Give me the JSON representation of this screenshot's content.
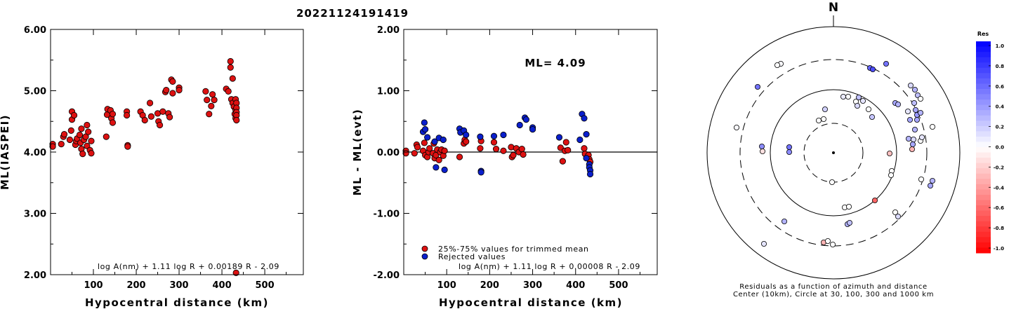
{
  "title": "20221124191419",
  "colors": {
    "red": "#dd1111",
    "blue": "#0a1fcc",
    "axis": "#000000"
  },
  "chart_data": [
    {
      "type": "scatter",
      "xlabel": "Hypocentral distance (km)",
      "ylabel": "ML(IASPEI)",
      "xlim": [
        0,
        590
      ],
      "ylim": [
        2.0,
        6.0
      ],
      "xticks": [
        "100",
        "200",
        "300",
        "400",
        "500"
      ],
      "yticks": [
        "2.00",
        "3.00",
        "4.00",
        "5.00",
        "6.00"
      ],
      "formula": "log A(nm) + 1.11 log R + 0.00189 R - 2.09",
      "series": [
        {
          "color": "red",
          "points": [
            [
              5,
              4.13
            ],
            [
              5,
              4.09
            ],
            [
              25,
              4.13
            ],
            [
              30,
              4.25
            ],
            [
              32,
              4.29
            ],
            [
              45,
              4.2
            ],
            [
              48,
              4.35
            ],
            [
              50,
              4.53
            ],
            [
              50,
              4.66
            ],
            [
              55,
              4.6
            ],
            [
              58,
              4.12
            ],
            [
              60,
              4.18
            ],
            [
              62,
              4.22
            ],
            [
              68,
              4.28
            ],
            [
              70,
              4.15
            ],
            [
              72,
              4.38
            ],
            [
              72,
              4.05
            ],
            [
              75,
              3.97
            ],
            [
              78,
              4.2
            ],
            [
              82,
              4.25
            ],
            [
              85,
              4.44
            ],
            [
              85,
              4.1
            ],
            [
              88,
              4.33
            ],
            [
              92,
              4.03
            ],
            [
              95,
              3.98
            ],
            [
              95,
              4.18
            ],
            [
              130,
              4.25
            ],
            [
              132,
              4.61
            ],
            [
              133,
              4.7
            ],
            [
              140,
              4.68
            ],
            [
              142,
              4.55
            ],
            [
              145,
              4.62
            ],
            [
              145,
              4.48
            ],
            [
              178,
              4.66
            ],
            [
              178,
              4.6
            ],
            [
              180,
              4.11
            ],
            [
              180,
              4.09
            ],
            [
              210,
              4.66
            ],
            [
              215,
              4.6
            ],
            [
              220,
              4.52
            ],
            [
              232,
              4.8
            ],
            [
              235,
              4.58
            ],
            [
              250,
              4.63
            ],
            [
              252,
              4.5
            ],
            [
              255,
              4.44
            ],
            [
              262,
              4.66
            ],
            [
              268,
              4.98
            ],
            [
              270,
              5.01
            ],
            [
              275,
              4.63
            ],
            [
              278,
              4.57
            ],
            [
              282,
              5.18
            ],
            [
              285,
              5.15
            ],
            [
              285,
              4.96
            ],
            [
              300,
              5.05
            ],
            [
              300,
              5.01
            ],
            [
              362,
              4.99
            ],
            [
              365,
              4.85
            ],
            [
              370,
              4.62
            ],
            [
              375,
              4.75
            ],
            [
              378,
              4.94
            ],
            [
              382,
              4.85
            ],
            [
              410,
              5.03
            ],
            [
              415,
              4.99
            ],
            [
              420,
              5.48
            ],
            [
              420,
              5.38
            ],
            [
              422,
              4.86
            ],
            [
              425,
              5.2
            ],
            [
              425,
              4.8
            ],
            [
              428,
              4.74
            ],
            [
              430,
              4.62
            ],
            [
              432,
              4.55
            ],
            [
              432,
              4.69
            ],
            [
              432,
              4.86
            ],
            [
              434,
              4.8
            ],
            [
              434,
              4.72
            ],
            [
              434,
              4.65
            ],
            [
              434,
              4.6
            ],
            [
              434,
              4.52
            ],
            [
              433,
              2.03
            ]
          ]
        }
      ]
    },
    {
      "type": "scatter",
      "xlabel": "Hypocentral distance (km)",
      "ylabel": "ML - ML(evt)",
      "xlim": [
        0,
        590
      ],
      "ylim": [
        -2.0,
        2.0
      ],
      "xticks": [
        "100",
        "200",
        "300",
        "400",
        "500"
      ],
      "yticks": [
        "-2.00",
        "-1.00",
        "0.00",
        "1.00",
        "2.00"
      ],
      "zero_line": 0,
      "annotation": "ML= 4.09",
      "formula": "log A(nm) + 1.11 log R + 0.00008 R - 2.09",
      "series": [
        {
          "name": "25%-75% values for trimmed mean",
          "color": "red",
          "points": [
            [
              5,
              0.02
            ],
            [
              5,
              -0.02
            ],
            [
              25,
              -0.02
            ],
            [
              30,
              0.12
            ],
            [
              32,
              0.08
            ],
            [
              45,
              0.02
            ],
            [
              48,
              0.15
            ],
            [
              50,
              -0.05
            ],
            [
              55,
              -0.08
            ],
            [
              58,
              0.0
            ],
            [
              60,
              0.06
            ],
            [
              68,
              -0.02
            ],
            [
              70,
              0.14
            ],
            [
              72,
              -0.1
            ],
            [
              75,
              -0.05
            ],
            [
              78,
              0.04
            ],
            [
              82,
              -0.13
            ],
            [
              85,
              0.0
            ],
            [
              88,
              0.04
            ],
            [
              92,
              -0.06
            ],
            [
              95,
              0.02
            ],
            [
              130,
              -0.08
            ],
            [
              140,
              0.14
            ],
            [
              142,
              0.2
            ],
            [
              145,
              0.17
            ],
            [
              178,
              0.06
            ],
            [
              180,
              0.18
            ],
            [
              210,
              0.16
            ],
            [
              215,
              0.05
            ],
            [
              232,
              0.02
            ],
            [
              250,
              0.08
            ],
            [
              252,
              -0.08
            ],
            [
              255,
              -0.05
            ],
            [
              262,
              0.06
            ],
            [
              268,
              0.0
            ],
            [
              275,
              0.05
            ],
            [
              278,
              -0.04
            ],
            [
              365,
              0.07
            ],
            [
              370,
              -0.15
            ],
            [
              375,
              0.02
            ],
            [
              378,
              0.16
            ],
            [
              382,
              0.03
            ],
            [
              420,
              0.06
            ],
            [
              422,
              -0.03
            ],
            [
              428,
              -0.08
            ],
            [
              430,
              -0.05
            ],
            [
              432,
              -0.12
            ],
            [
              434,
              -0.16
            ]
          ]
        },
        {
          "name": "Rejected values",
          "color": "blue",
          "points": [
            [
              45,
              0.33
            ],
            [
              48,
              0.48
            ],
            [
              50,
              0.37
            ],
            [
              55,
              0.24
            ],
            [
              72,
              0.17
            ],
            [
              75,
              -0.25
            ],
            [
              82,
              0.23
            ],
            [
              92,
              0.2
            ],
            [
              95,
              -0.29
            ],
            [
              130,
              0.38
            ],
            [
              132,
              0.32
            ],
            [
              140,
              0.35
            ],
            [
              145,
              0.28
            ],
            [
              178,
              0.25
            ],
            [
              180,
              -0.31
            ],
            [
              180,
              -0.33
            ],
            [
              210,
              0.26
            ],
            [
              232,
              0.28
            ],
            [
              270,
              0.44
            ],
            [
              282,
              0.56
            ],
            [
              285,
              0.53
            ],
            [
              300,
              0.4
            ],
            [
              300,
              0.37
            ],
            [
              362,
              0.24
            ],
            [
              410,
              0.2
            ],
            [
              415,
              0.62
            ],
            [
              420,
              0.55
            ],
            [
              425,
              0.29
            ],
            [
              425,
              -0.1
            ],
            [
              432,
              -0.2
            ],
            [
              432,
              -0.25
            ],
            [
              434,
              -0.3
            ],
            [
              434,
              -0.36
            ]
          ]
        }
      ]
    },
    {
      "type": "scatter",
      "title": "N",
      "caption_line1": "Residuals as a function of azimuth and distance",
      "caption_line2": "Center (10km), Circle at 30, 100, 300 and 1000 km",
      "rings_km": [
        30,
        100,
        300,
        1000
      ],
      "colorbar_label": "Res",
      "colorbar_ticks": [
        "1.0",
        "0.8",
        "0.6",
        "0.4",
        "0.2",
        "0.0",
        "-0.2",
        "-0.4",
        "-0.6",
        "-0.8",
        "-1.0"
      ],
      "colorbar_range": [
        -1.0,
        1.0
      ],
      "points": [
        [
          -75,
          -127,
          0.02
        ],
        [
          -80,
          -125,
          0.0
        ],
        [
          -108,
          -94,
          0.55
        ],
        [
          -138,
          -36,
          0.02
        ],
        [
          -102,
          -9,
          0.45
        ],
        [
          -101,
          -2,
          -0.12
        ],
        [
          -63,
          -8,
          0.55
        ],
        [
          -63,
          -1,
          0.45
        ],
        [
          14,
          -80,
          0.08
        ],
        [
          21,
          -80,
          0.0
        ],
        [
          32,
          -73,
          0.0
        ],
        [
          36,
          -79,
          0.25
        ],
        [
          42,
          -74,
          0.1
        ],
        [
          34,
          -67,
          0.15
        ],
        [
          50,
          -62,
          0.0
        ],
        [
          55,
          -51,
          0.22
        ],
        [
          -12,
          -62,
          0.18
        ],
        [
          -21,
          -46,
          0.0
        ],
        [
          -14,
          -48,
          0.0
        ],
        [
          75,
          -127,
          0.55
        ],
        [
          52,
          -121,
          0.6
        ],
        [
          56,
          -119,
          0.7
        ],
        [
          88,
          -71,
          0.35
        ],
        [
          92,
          -69,
          0.3
        ],
        [
          110,
          -96,
          0.15
        ],
        [
          116,
          -90,
          0.3
        ],
        [
          120,
          -82,
          0.25
        ],
        [
          124,
          -77,
          0.0
        ],
        [
          115,
          -71,
          0.25
        ],
        [
          117,
          -61,
          0.35
        ],
        [
          119,
          -54,
          0.4
        ],
        [
          119,
          -47,
          0.35
        ],
        [
          124,
          -57,
          0.3
        ],
        [
          106,
          -59,
          0.1
        ],
        [
          109,
          -47,
          0.35
        ],
        [
          116,
          -33,
          0.3
        ],
        [
          141,
          -37,
          0.0
        ],
        [
          107,
          -20,
          0.3
        ],
        [
          113,
          -12,
          0.35
        ],
        [
          124,
          -17,
          0.0
        ],
        [
          112,
          -5,
          -0.3
        ],
        [
          114,
          -19,
          0.15
        ],
        [
          126,
          -22,
          0.1
        ],
        [
          80,
          1,
          -0.25
        ],
        [
          83,
          26,
          0.0
        ],
        [
          82,
          32,
          0.0
        ],
        [
          -2,
          42,
          0.0
        ],
        [
          125,
          38,
          0.0
        ],
        [
          141,
          40,
          0.3
        ],
        [
          138,
          47,
          0.35
        ],
        [
          59,
          68,
          -0.6
        ],
        [
          16,
          78,
          0.0
        ],
        [
          22,
          77,
          0.0
        ],
        [
          88,
          85,
          0.0
        ],
        [
          92,
          91,
          0.15
        ],
        [
          20,
          102,
          0.3
        ],
        [
          23,
          100,
          0.25
        ],
        [
          -1,
          131,
          0.0
        ],
        [
          -14,
          128,
          -0.3
        ],
        [
          -8,
          126,
          0.0
        ],
        [
          -99,
          130,
          0.1
        ],
        [
          -70,
          98,
          0.3
        ]
      ]
    }
  ]
}
